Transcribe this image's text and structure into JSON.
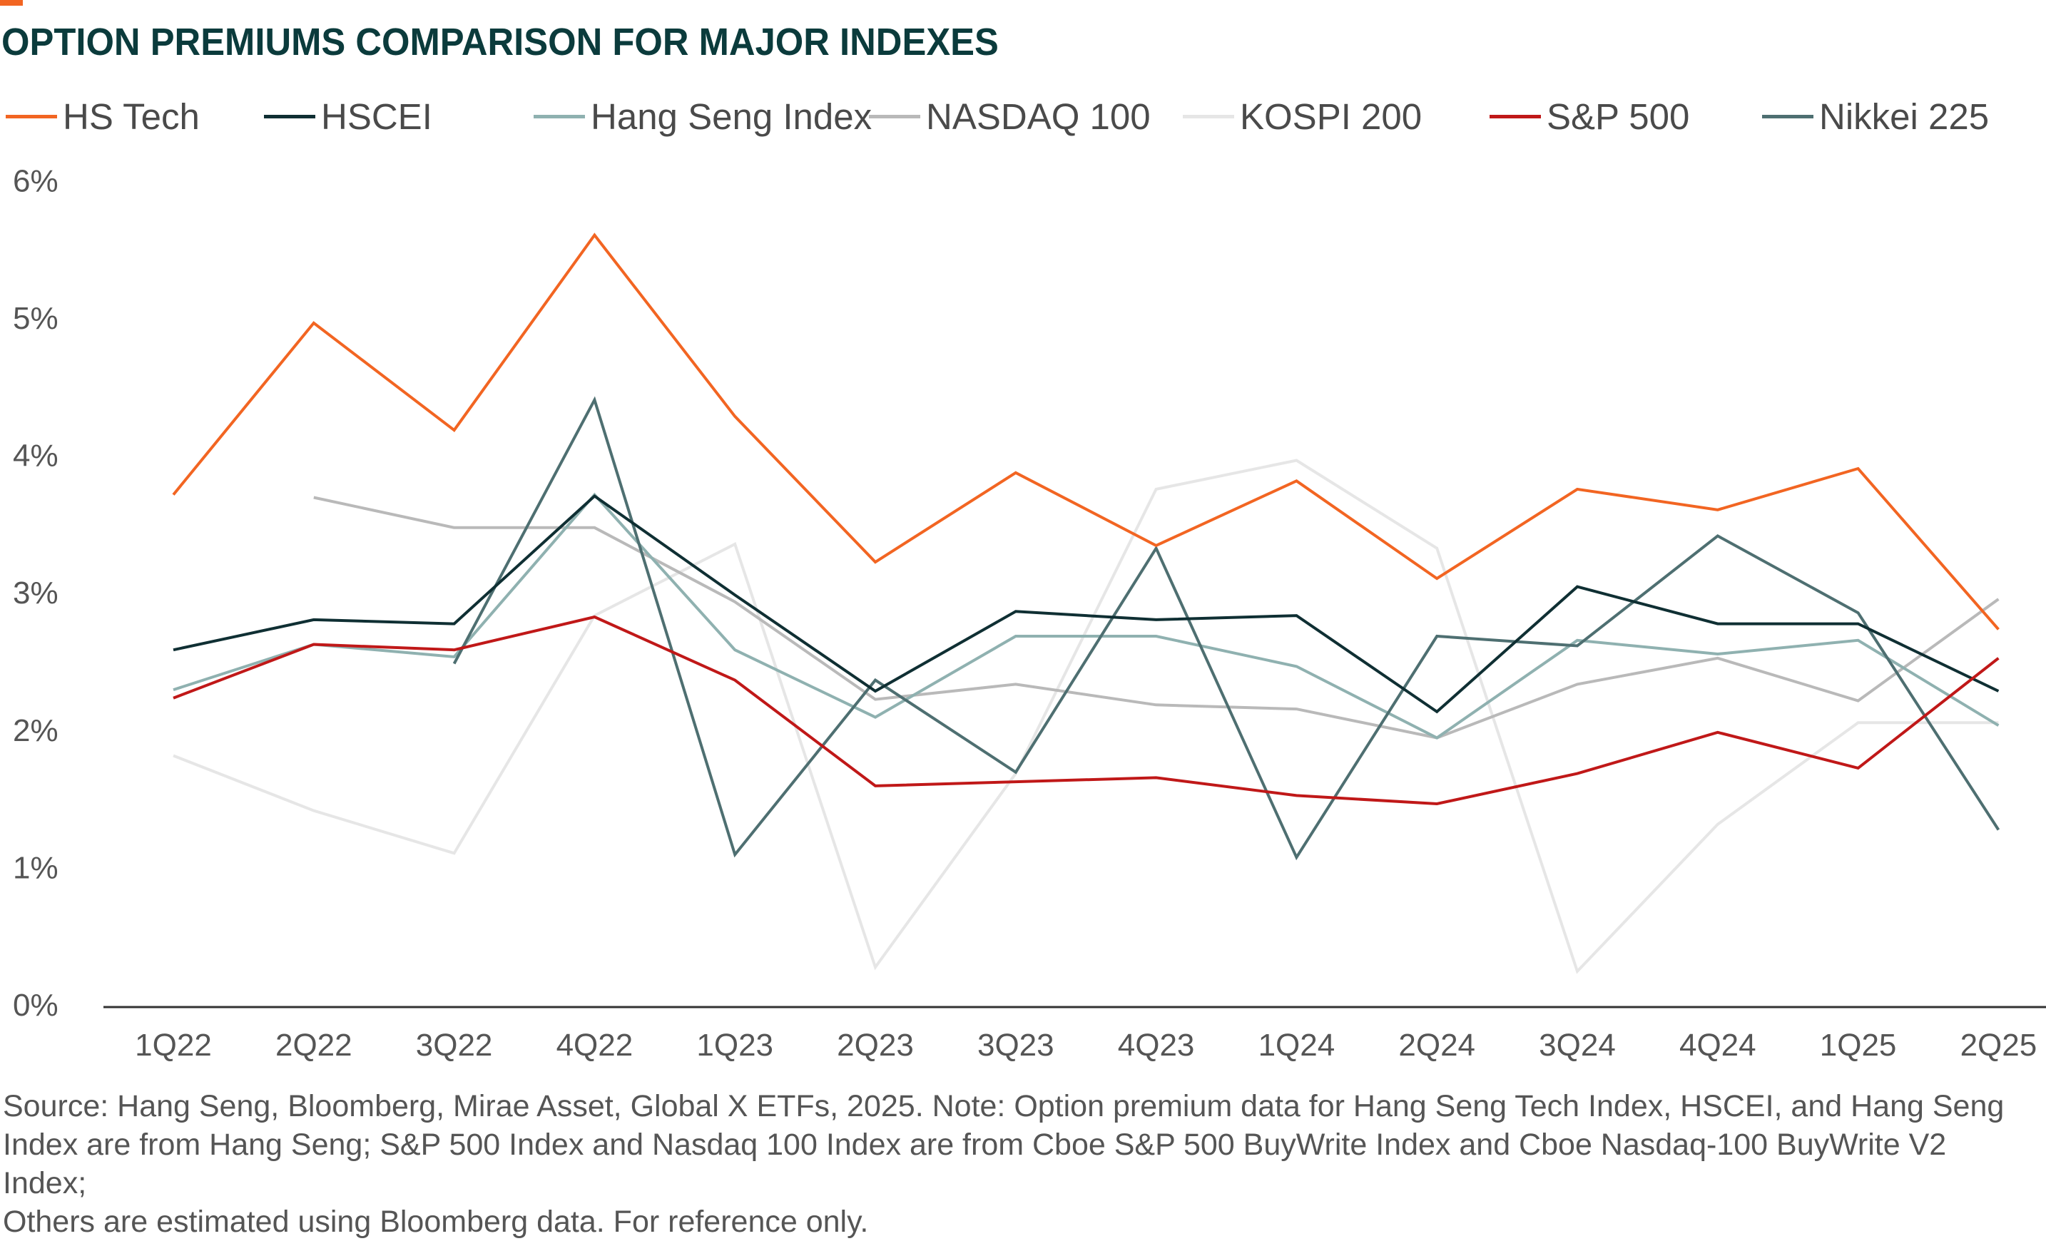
{
  "title": "OPTION PREMIUMS COMPARISON FOR MAJOR INDEXES",
  "footnote": {
    "line1": "Source: Hang Seng, Bloomberg, Mirae Asset, Global X ETFs, 2025. Note: Option premium data for Hang Seng Tech Index, HSCEI, and Hang Seng",
    "line2": "Index are from Hang Seng; S&P 500 Index and Nasdaq 100 Index are from Cboe S&P 500 BuyWrite Index and Cboe Nasdaq-100 BuyWrite V2 Index;",
    "line3": "Others are estimated using Bloomberg data. For reference only."
  },
  "chart_data": {
    "type": "line",
    "title": "OPTION PREMIUMS COMPARISON FOR MAJOR INDEXES",
    "xlabel": "",
    "ylabel": "",
    "categories": [
      "1Q22",
      "2Q22",
      "3Q22",
      "4Q22",
      "1Q23",
      "2Q23",
      "3Q23",
      "4Q23",
      "1Q24",
      "2Q24",
      "3Q24",
      "4Q24",
      "1Q25",
      "2Q25"
    ],
    "ylim": [
      0,
      6
    ],
    "yticks": [
      0,
      1,
      2,
      3,
      4,
      5,
      6
    ],
    "ytick_labels": [
      "0%",
      "1%",
      "2%",
      "3%",
      "4%",
      "5%",
      "6%"
    ],
    "grid": false,
    "legend_position": "top",
    "series": [
      {
        "name": "HS Tech",
        "color": "#f26522",
        "values": [
          3.73,
          4.98,
          4.2,
          5.62,
          4.3,
          3.24,
          3.89,
          3.36,
          3.83,
          3.12,
          3.77,
          3.62,
          3.92,
          2.75
        ]
      },
      {
        "name": "HSCEI",
        "color": "#0f2f33",
        "values": [
          2.6,
          2.82,
          2.79,
          3.72,
          3.0,
          2.3,
          2.88,
          2.82,
          2.85,
          2.15,
          3.06,
          2.79,
          2.79,
          2.3
        ]
      },
      {
        "name": "Hang Seng Index",
        "color": "#8fb1b0",
        "values": [
          2.31,
          2.64,
          2.55,
          3.73,
          2.6,
          2.11,
          2.7,
          2.7,
          2.48,
          1.96,
          2.67,
          2.57,
          2.67,
          2.05
        ]
      },
      {
        "name": "NASDAQ 100",
        "color": "#b9b9b9",
        "values": [
          null,
          3.71,
          3.49,
          3.49,
          2.95,
          2.24,
          2.35,
          2.2,
          2.17,
          1.96,
          2.35,
          2.54,
          2.23,
          2.97
        ]
      },
      {
        "name": "KOSPI 200",
        "color": "#e6e6e6",
        "values": [
          1.83,
          1.43,
          1.12,
          2.85,
          3.37,
          0.29,
          1.7,
          3.77,
          3.98,
          3.34,
          0.26,
          1.33,
          2.07,
          2.07
        ]
      },
      {
        "name": "S&P 500",
        "color": "#c01818",
        "values": [
          2.25,
          2.64,
          2.6,
          2.84,
          2.38,
          1.61,
          1.64,
          1.67,
          1.54,
          1.48,
          1.7,
          2.0,
          1.74,
          2.54
        ]
      },
      {
        "name": "Nikkei 225",
        "color": "#4e6f71",
        "values": [
          null,
          null,
          2.5,
          4.42,
          1.11,
          2.38,
          1.71,
          3.34,
          1.09,
          2.7,
          2.63,
          3.43,
          2.87,
          1.29
        ]
      }
    ]
  }
}
